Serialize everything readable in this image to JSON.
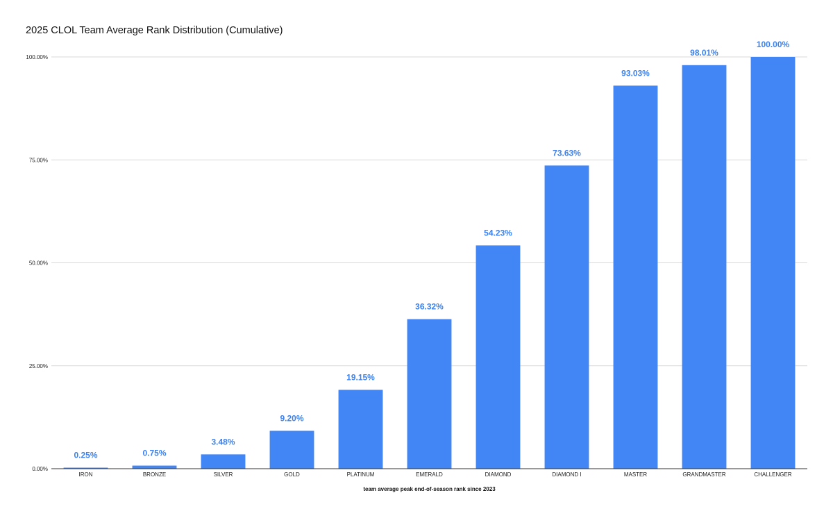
{
  "chart_data": {
    "type": "bar",
    "title": "2025 CLOL Team Average Rank Distribution (Cumulative)",
    "xlabel": "team average peak end-of-season rank since 2023",
    "ylabel": "",
    "ylim": [
      0,
      100
    ],
    "y_ticks": [
      "0.00%",
      "25.00%",
      "50.00%",
      "75.00%",
      "100.00%"
    ],
    "y_tick_values": [
      0,
      25,
      50,
      75,
      100
    ],
    "categories": [
      "IRON",
      "BRONZE",
      "SILVER",
      "GOLD",
      "PLATINUM",
      "EMERALD",
      "DIAMOND",
      "DIAMOND I",
      "MASTER",
      "GRANDMASTER",
      "CHALLENGER"
    ],
    "values": [
      0.25,
      0.75,
      3.48,
      9.2,
      19.15,
      36.32,
      54.23,
      73.63,
      93.03,
      98.01,
      100.0
    ],
    "data_labels": [
      "0.25%",
      "0.75%",
      "3.48%",
      "9.20%",
      "19.15%",
      "36.32%",
      "54.23%",
      "73.63%",
      "93.03%",
      "98.01%",
      "100.00%"
    ],
    "grid": true,
    "legend": "none",
    "colors": {
      "bar": "#4285f4",
      "label": "#3b82f0",
      "grid": "#d9d9d9",
      "axis": "#333333"
    }
  }
}
